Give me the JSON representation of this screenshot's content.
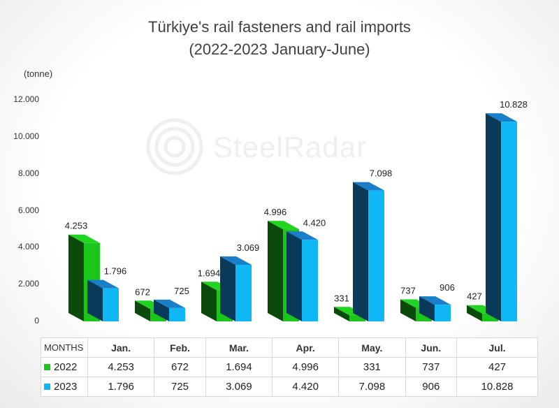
{
  "chart_data": {
    "type": "bar",
    "title": "Türkiye's rail fasteners and rail imports",
    "subtitle": "(2022-2023 January-June)",
    "ylabel": "(tonne)",
    "ylim": [
      0,
      12000
    ],
    "yticks": [
      0,
      2000,
      4000,
      6000,
      8000,
      10000,
      12000
    ],
    "ytick_labels": [
      "0",
      "2.000",
      "4.000",
      "6.000",
      "8.000",
      "10.000",
      "12.000"
    ],
    "grid": false,
    "style": "3d-clustered-column",
    "categories_header": "MONTHS",
    "categories": [
      "Jan.",
      "Feb.",
      "Mar.",
      "Apr.",
      "May.",
      "Jun.",
      "Jul."
    ],
    "series": [
      {
        "name": "2022",
        "color": "#19c619",
        "side_color": "#0b4a0b",
        "top_color": "#22d422",
        "values": [
          4253,
          672,
          1694,
          4996,
          331,
          737,
          427
        ],
        "labels": [
          "4.253",
          "672",
          "1.694",
          "4.996",
          "331",
          "737",
          "427"
        ]
      },
      {
        "name": "2023",
        "color": "#0fb8f5",
        "side_color": "#0a3a5a",
        "top_color": "#1a7fc8",
        "values": [
          1796,
          725,
          3069,
          4420,
          7098,
          906,
          10828
        ],
        "labels": [
          "1.796",
          "725",
          "3.069",
          "4.420",
          "7.098",
          "906",
          "10.828"
        ]
      }
    ],
    "watermark": "SteelRadar"
  }
}
